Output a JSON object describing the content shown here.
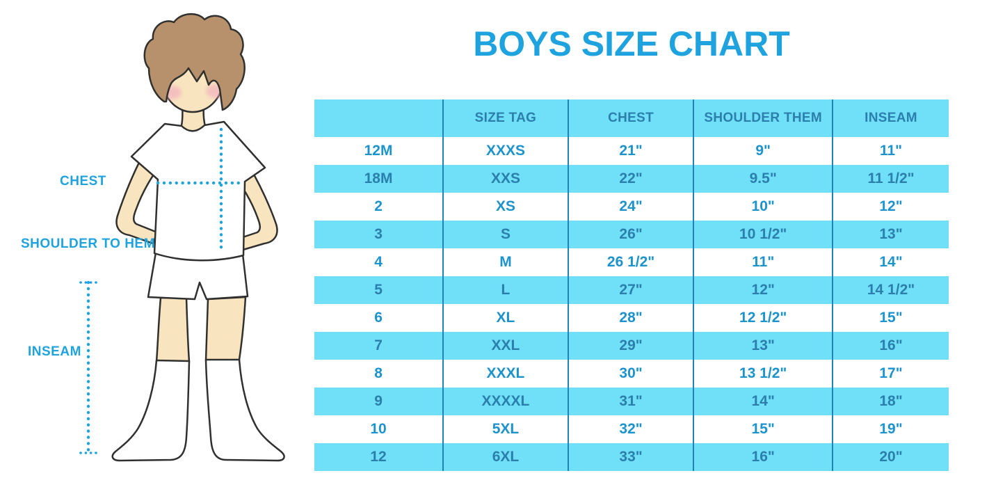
{
  "title": "BOYS SIZE CHART",
  "figure": {
    "labels": {
      "chest": "CHEST",
      "shoulder_to_hem": "SHOULDER TO HEM",
      "inseam": "INSEAM"
    }
  },
  "colors": {
    "accent": "#1FA3DF",
    "cyan": "#70DFF8",
    "text_dark": "#2B7FAC",
    "text_bright": "#1D93CE",
    "divider": "#1D83B8"
  },
  "chart_data": {
    "type": "table",
    "title": "BOYS SIZE CHART",
    "columns": [
      "",
      "SIZE TAG",
      "CHEST",
      "SHOULDER THEM",
      "INSEAM"
    ],
    "rows": [
      [
        "12M",
        "XXXS",
        "21\"",
        "9\"",
        "11\""
      ],
      [
        "18M",
        "XXS",
        "22\"",
        "9.5\"",
        "11 1/2\""
      ],
      [
        "2",
        "XS",
        "24\"",
        "10\"",
        "12\""
      ],
      [
        "3",
        "S",
        "26\"",
        "10 1/2\"",
        "13\""
      ],
      [
        "4",
        "M",
        "26 1/2\"",
        "11\"",
        "14\""
      ],
      [
        "5",
        "L",
        "27\"",
        "12\"",
        "14 1/2\""
      ],
      [
        "6",
        "XL",
        "28\"",
        "12 1/2\"",
        "15\""
      ],
      [
        "7",
        "XXL",
        "29\"",
        "13\"",
        "16\""
      ],
      [
        "8",
        "XXXL",
        "30\"",
        "13 1/2\"",
        "17\""
      ],
      [
        "9",
        "XXXXL",
        "31\"",
        "14\"",
        "18\""
      ],
      [
        "10",
        "5XL",
        "32\"",
        "15\"",
        "19\""
      ],
      [
        "12",
        "6XL",
        "33\"",
        "16\"",
        "20\""
      ]
    ]
  }
}
